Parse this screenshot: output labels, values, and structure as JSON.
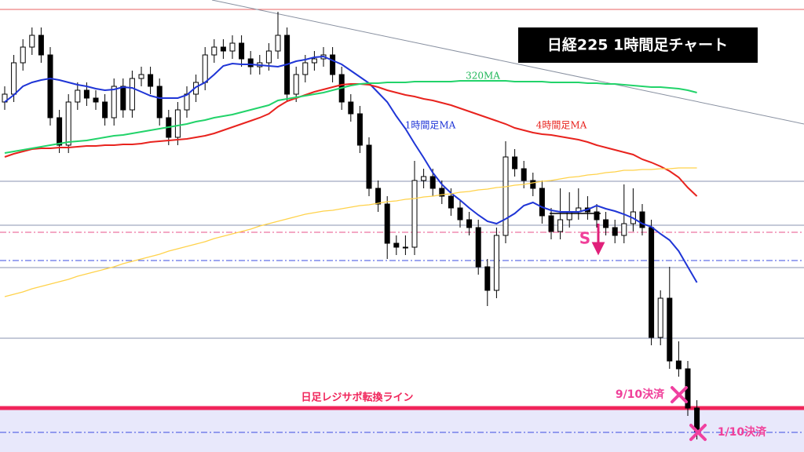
{
  "chart_data": {
    "type": "candlestick",
    "title": "日経225 1時間足チャート",
    "ylim": [
      0,
      576
    ],
    "up_color": "#ffffff",
    "down_color": "#000000",
    "wick_color": "#000000",
    "open": [
      446,
      456,
      496,
      516,
      531,
      506,
      426,
      391,
      446,
      461,
      451,
      446,
      426,
      466,
      436,
      476,
      481,
      466,
      426,
      401,
      436,
      456,
      471,
      506,
      516,
      511,
      521,
      501,
      491,
      496,
      511,
      531,
      456,
      481,
      496,
      501,
      506,
      481,
      446,
      431,
      391,
      336,
      316,
      266,
      261,
      261,
      346,
      351,
      336,
      326,
      311,
      296,
      286,
      236,
      206,
      276,
      376,
      361,
      346,
      336,
      301,
      281,
      296,
      306,
      311,
      306,
      296,
      286,
      276,
      291,
      306,
      286,
      146,
      196,
      116,
      106,
      56
    ],
    "high": [
      466,
      506,
      526,
      541,
      541,
      516,
      436,
      456,
      471,
      471,
      461,
      456,
      476,
      476,
      486,
      491,
      491,
      476,
      436,
      446,
      466,
      481,
      516,
      526,
      526,
      531,
      531,
      511,
      506,
      521,
      561,
      541,
      491,
      506,
      511,
      516,
      516,
      491,
      456,
      441,
      401,
      346,
      326,
      276,
      276,
      371,
      361,
      361,
      346,
      336,
      321,
      306,
      296,
      246,
      286,
      396,
      386,
      371,
      356,
      346,
      311,
      336,
      331,
      336,
      326,
      316,
      306,
      296,
      341,
      336,
      316,
      296,
      206,
      236,
      141,
      116,
      66
    ],
    "low": [
      436,
      446,
      486,
      506,
      496,
      416,
      381,
      381,
      436,
      441,
      436,
      416,
      416,
      426,
      426,
      466,
      456,
      416,
      391,
      391,
      426,
      446,
      461,
      496,
      501,
      501,
      491,
      481,
      481,
      486,
      501,
      446,
      446,
      471,
      486,
      491,
      471,
      436,
      421,
      381,
      326,
      306,
      246,
      251,
      251,
      251,
      336,
      326,
      316,
      301,
      286,
      276,
      226,
      186,
      196,
      266,
      351,
      336,
      326,
      291,
      271,
      271,
      286,
      296,
      296,
      286,
      276,
      266,
      266,
      281,
      276,
      136,
      136,
      106,
      96,
      46,
      16
    ],
    "close": [
      456,
      496,
      516,
      531,
      506,
      426,
      391,
      446,
      461,
      451,
      446,
      426,
      466,
      436,
      476,
      481,
      466,
      426,
      401,
      436,
      456,
      471,
      506,
      516,
      511,
      521,
      501,
      491,
      496,
      511,
      531,
      456,
      481,
      496,
      501,
      506,
      481,
      446,
      431,
      391,
      336,
      316,
      266,
      261,
      261,
      346,
      351,
      336,
      326,
      311,
      296,
      286,
      236,
      206,
      276,
      376,
      361,
      346,
      336,
      301,
      281,
      296,
      306,
      311,
      306,
      296,
      286,
      276,
      291,
      306,
      286,
      146,
      196,
      116,
      106,
      56,
      26
    ],
    "series": [
      {
        "name": "1時間足MA",
        "color": "#1f35d6",
        "width": 2,
        "values": [
          446,
          455,
          466,
          471,
          474,
          476,
          474,
          471,
          468,
          466,
          463,
          461,
          462,
          465,
          464,
          459,
          454,
          451,
          451,
          451,
          455,
          465,
          471,
          481,
          492,
          495,
          494,
          494,
          493,
          492,
          491,
          494,
          498,
          500,
          503,
          504,
          499,
          494,
          486,
          478,
          470,
          458,
          446,
          428,
          412,
          393,
          375,
          356,
          341,
          330,
          321,
          311,
          302,
          294,
          291,
          297,
          304,
          314,
          318,
          312,
          308,
          306,
          306,
          306,
          309,
          314,
          310,
          307,
          303,
          298,
          291,
          287,
          278,
          270,
          256,
          236,
          216
        ]
      },
      {
        "name": "4時間足MA",
        "color": "#e8231e",
        "width": 2,
        "values": [
          376,
          380,
          383,
          386,
          387,
          387,
          388,
          388,
          389,
          390,
          390,
          391,
          391,
          392,
          392,
          393,
          395,
          396,
          397,
          398,
          399,
          401,
          403,
          406,
          410,
          414,
          418,
          422,
          426,
          431,
          440,
          447,
          451,
          455,
          459,
          462,
          465,
          468,
          469,
          469,
          468,
          465,
          461,
          458,
          455,
          453,
          450,
          448,
          445,
          442,
          438,
          434,
          430,
          426,
          422,
          418,
          413,
          410,
          407,
          405,
          404,
          402,
          400,
          398,
          395,
          391,
          388,
          385,
          382,
          379,
          373,
          369,
          364,
          358,
          350,
          337,
          326
        ]
      },
      {
        "name": "320MA",
        "color": "#22d36a",
        "width": 2,
        "values": [
          381,
          383,
          385,
          387,
          389,
          391,
          393,
          395,
          396,
          397,
          399,
          401,
          403,
          404,
          406,
          408,
          410,
          412,
          414,
          416,
          418,
          421,
          423,
          426,
          428,
          430,
          433,
          436,
          439,
          442,
          448,
          450,
          452,
          454,
          456,
          458,
          461,
          464,
          467,
          469,
          470,
          470,
          471,
          471,
          471,
          472,
          472,
          472,
          472,
          472,
          473,
          473,
          473,
          473,
          473,
          473,
          472,
          472,
          472,
          472,
          471,
          471,
          471,
          471,
          470,
          470,
          469,
          469,
          468,
          467,
          466,
          465,
          465,
          464,
          463,
          461,
          458
        ]
      },
      {
        "color": "#ffd24a",
        "width": 1.2,
        "values": [
          198,
          201,
          204,
          208,
          211,
          214,
          217,
          220,
          224,
          227,
          230,
          233,
          236,
          240,
          243,
          246,
          249,
          252,
          256,
          259,
          262,
          265,
          268,
          272,
          275,
          278,
          281,
          284,
          288,
          291,
          294,
          297,
          300,
          303,
          305,
          307,
          308,
          310,
          312,
          314,
          315,
          317,
          319,
          320,
          322,
          323,
          325,
          326,
          328,
          329,
          331,
          332,
          334,
          335,
          337,
          338,
          340,
          341,
          343,
          345,
          346,
          348,
          350,
          351,
          353,
          354,
          356,
          357,
          359,
          359,
          360,
          360,
          361,
          361,
          362,
          362,
          362
        ]
      }
    ],
    "levels": [
      {
        "value": 564,
        "color": "#e86060",
        "style": "solid",
        "width": 1
      },
      {
        "value": 345,
        "color": "#8a93b0",
        "style": "solid",
        "width": 1
      },
      {
        "value": 289,
        "color": "#8a93b0",
        "style": "solid",
        "width": 1
      },
      {
        "value": 280,
        "color": "#e8508a",
        "style": "dashdot",
        "width": 1
      },
      {
        "value": 244,
        "color": "#3a4be0",
        "style": "dashdot",
        "width": 1
      },
      {
        "value": 235,
        "color": "#8a93b0",
        "style": "solid",
        "width": 1
      },
      {
        "value": 145,
        "color": "#8a93b0",
        "style": "solid",
        "width": 1
      },
      {
        "value": 56,
        "color": "#f0245a",
        "style": "solid",
        "width": 5
      },
      {
        "value": 25,
        "color": "#3a4be0",
        "style": "dashdot",
        "width": 1
      }
    ],
    "trendline": [
      576,
      418
    ],
    "annotations": [
      "日足レジサポ転換ライン",
      "9/10決済",
      "1/10決済",
      "S"
    ]
  }
}
